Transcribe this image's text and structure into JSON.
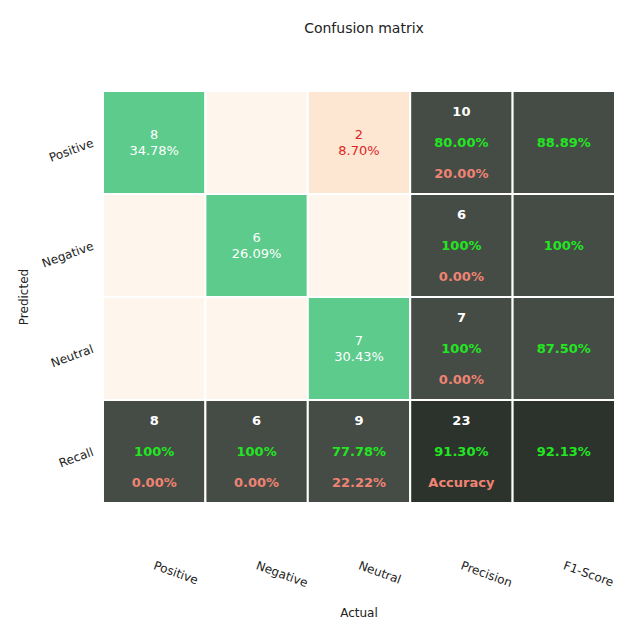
{
  "chart_data": {
    "type": "heatmap",
    "title": "Confusion matrix",
    "x_label": "Actual",
    "y_label": "Predicted",
    "column_labels": [
      "Positive",
      "Negative",
      "Neutral",
      "Precision",
      "F1-Score"
    ],
    "row_labels": [
      "Positive",
      "Negative",
      "Neutral",
      "Recall"
    ],
    "counts": [
      [
        8,
        null,
        2
      ],
      [
        null,
        6,
        null
      ],
      [
        null,
        null,
        7
      ]
    ],
    "percents": [
      [
        34.78,
        null,
        8.7
      ],
      [
        null,
        26.09,
        null
      ],
      [
        null,
        null,
        30.43
      ]
    ],
    "percent_labels": [
      [
        "34.78%",
        null,
        "8.70%"
      ],
      [
        null,
        "26.09%",
        null
      ],
      [
        null,
        null,
        "30.43%"
      ]
    ],
    "precision": {
      "totals": [
        10,
        6,
        7
      ],
      "values": [
        80,
        100,
        100
      ],
      "value_labels": [
        "80.00%",
        "100%",
        "100%"
      ],
      "errors": [
        20,
        0,
        0
      ],
      "error_labels": [
        "20.00%",
        "0.00%",
        "0.00%"
      ]
    },
    "f1": {
      "values": [
        88.89,
        100,
        87.5
      ],
      "value_labels": [
        "88.89%",
        "100%",
        "87.50%"
      ]
    },
    "recall": {
      "totals": [
        8,
        6,
        9
      ],
      "values": [
        100,
        100,
        77.78
      ],
      "value_labels": [
        "100%",
        "100%",
        "77.78%"
      ],
      "errors": [
        0,
        0,
        22.22
      ],
      "error_labels": [
        "0.00%",
        "0.00%",
        "22.22%"
      ]
    },
    "accuracy": {
      "total": 23,
      "value": 91.3,
      "value_label": "91.30%",
      "label": "Accuracy"
    },
    "f1_overall": {
      "value": 92.13,
      "value_label": "92.13%"
    }
  }
}
